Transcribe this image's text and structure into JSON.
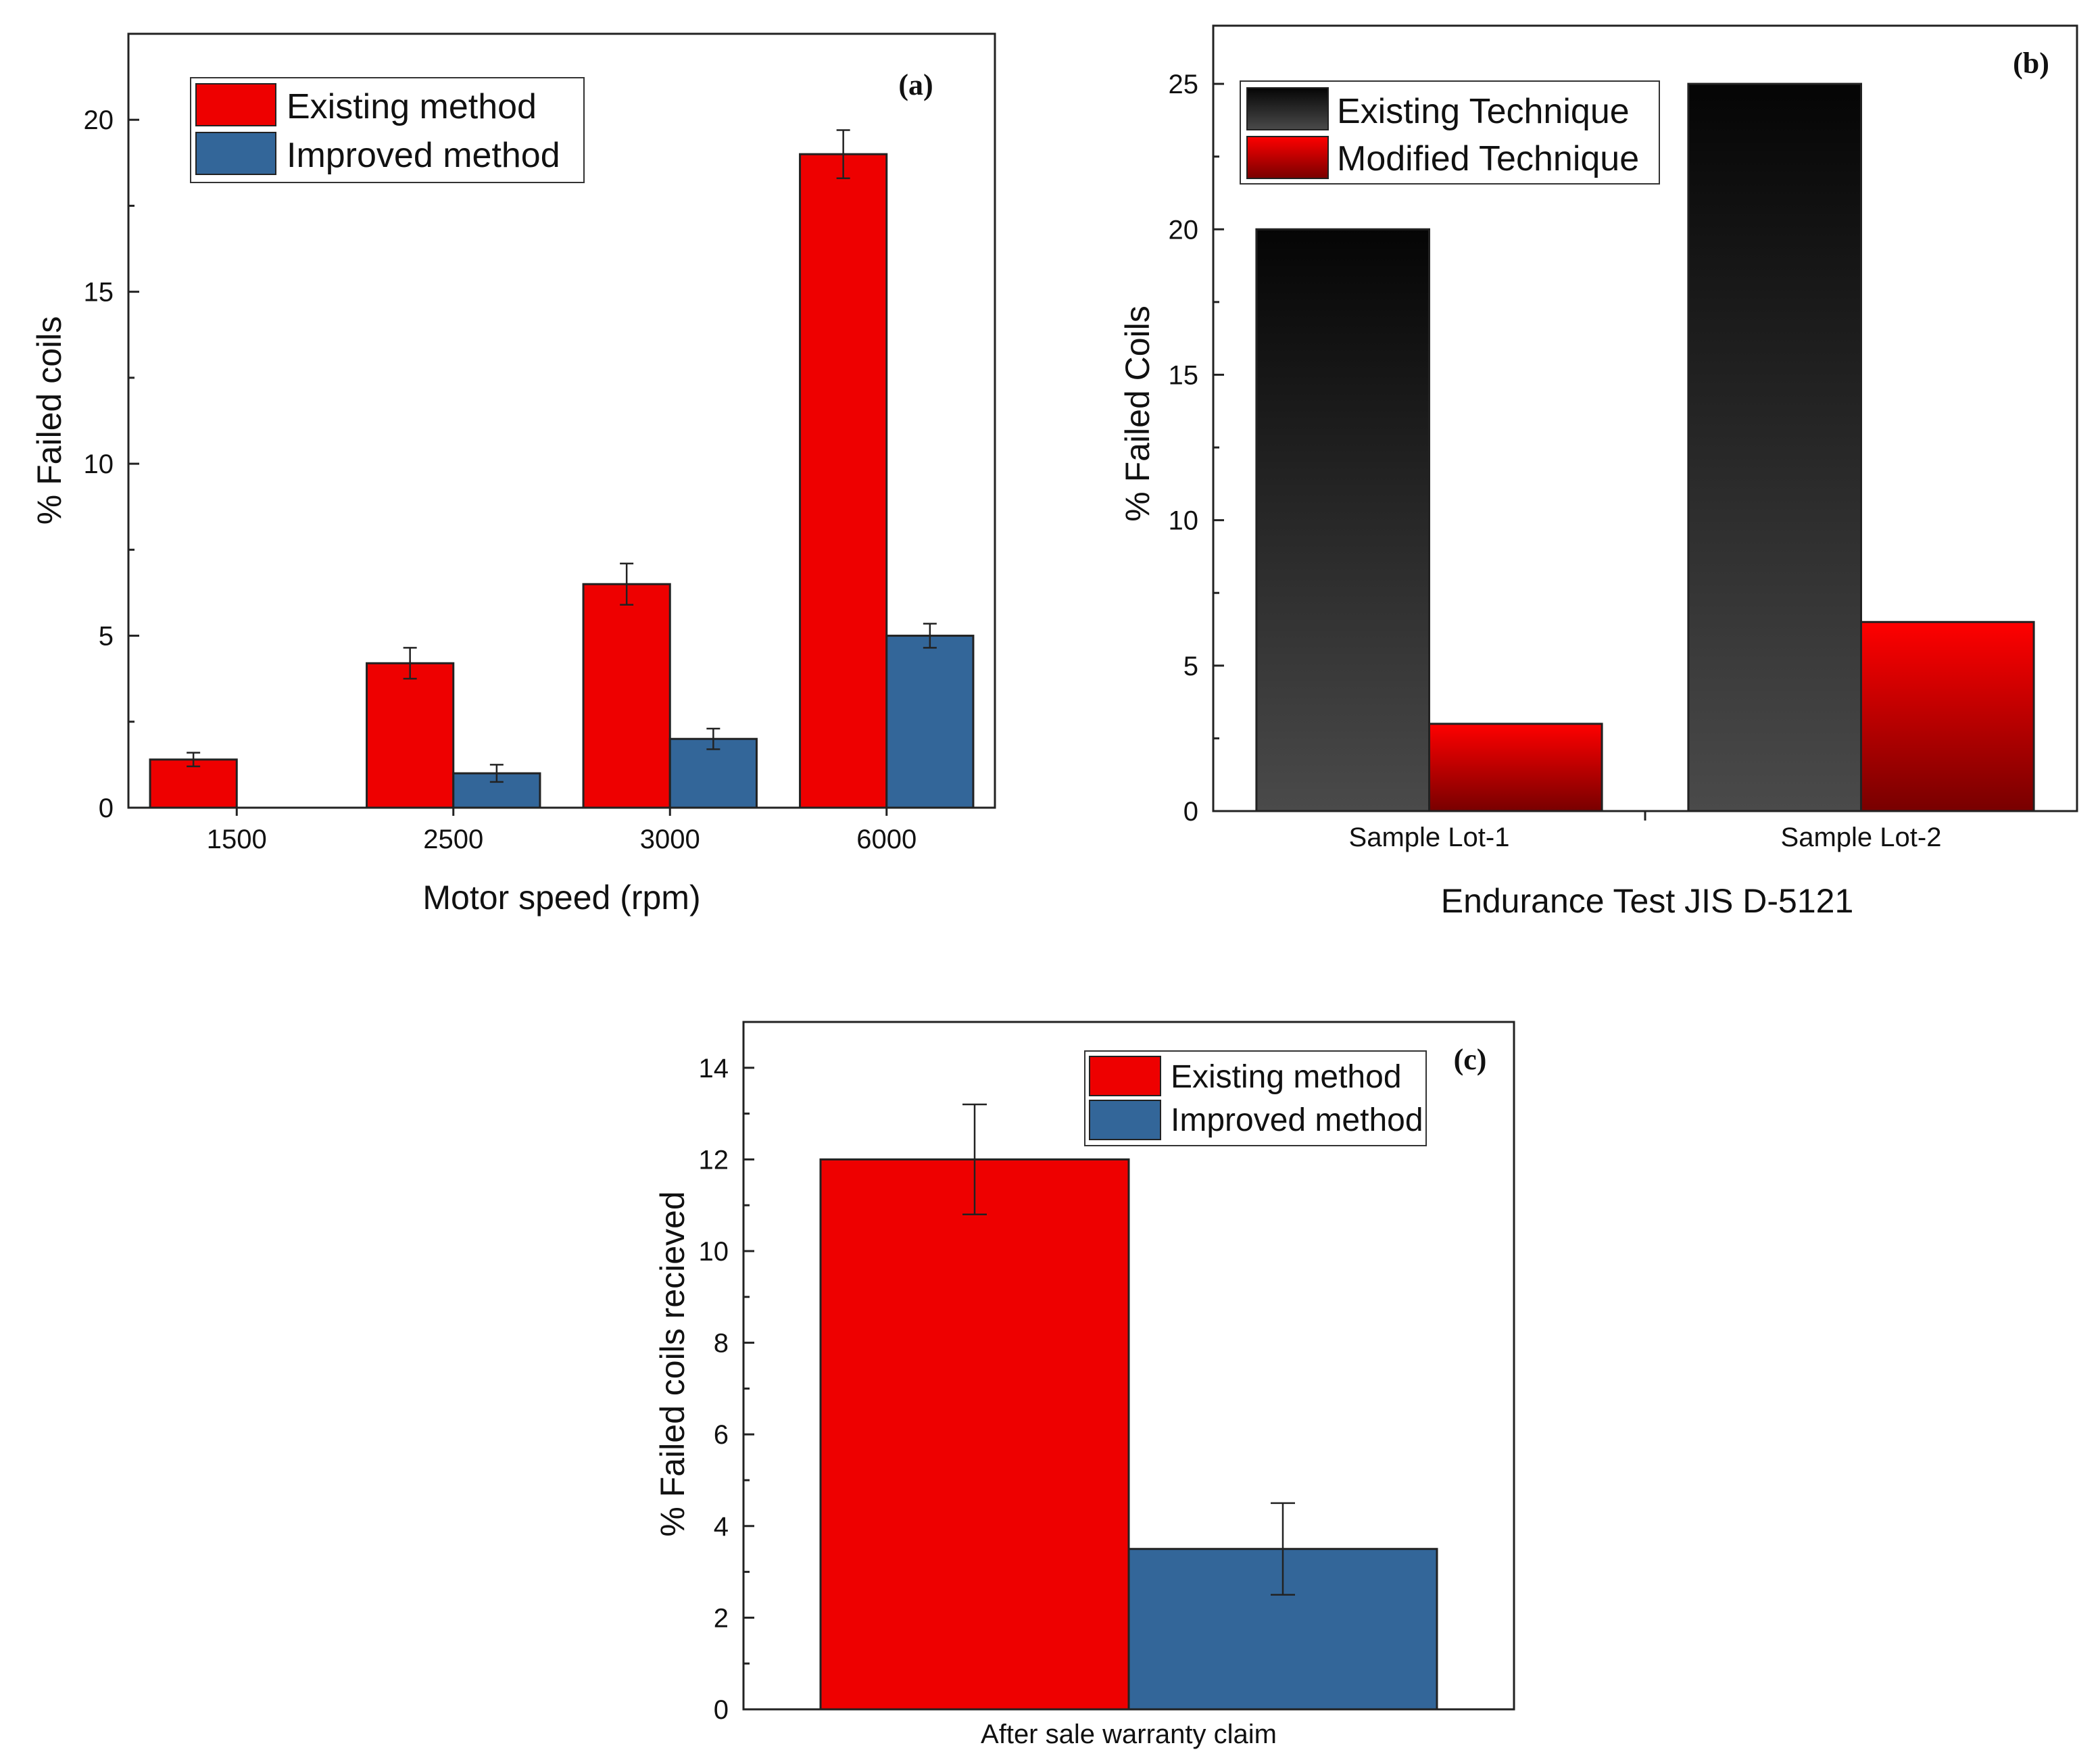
{
  "chart_data": [
    {
      "type": "bar",
      "panel_label": "(a)",
      "categories": [
        "1500",
        "2500",
        "3000",
        "6000"
      ],
      "series": [
        {
          "name": "Existing method",
          "values": [
            1.4,
            4.2,
            6.5,
            19.0
          ],
          "errors": [
            0.2,
            0.45,
            0.6,
            0.7
          ],
          "color": "#ee0000"
        },
        {
          "name": "Improved method",
          "values": [
            0,
            1.0,
            2.0,
            5.0
          ],
          "errors": [
            0,
            0.25,
            0.3,
            0.35
          ],
          "color": "#336699"
        }
      ],
      "xlabel": "Motor speed (rpm)",
      "ylabel": "% Failed coils",
      "ylim": [
        0,
        22.5
      ],
      "yticks": [
        0,
        5,
        10,
        15,
        20
      ],
      "legend": "top-left",
      "grid": false
    },
    {
      "type": "bar",
      "panel_label": "(b)",
      "categories": [
        "Sample Lot-1",
        "Sample Lot-2"
      ],
      "series": [
        {
          "name": "Existing Technique",
          "values": [
            20,
            25
          ],
          "color": "#1a1a1a"
        },
        {
          "name": "Modified Technique",
          "values": [
            3,
            6.5
          ],
          "color": "#ff0000"
        }
      ],
      "xlabel": "Endurance Test JIS D-5121",
      "ylabel": "% Failed Coils",
      "ylim": [
        0,
        27
      ],
      "yticks": [
        0,
        5,
        10,
        15,
        20,
        25
      ],
      "legend": "top-left",
      "grid": false
    },
    {
      "type": "bar",
      "panel_label": "(c)",
      "categories": [
        "After sale warranty claim"
      ],
      "series": [
        {
          "name": "Existing method",
          "values": [
            12
          ],
          "errors": [
            1.2
          ],
          "color": "#ee0000"
        },
        {
          "name": "Improved method",
          "values": [
            3.5
          ],
          "errors": [
            1.0
          ],
          "color": "#336699"
        }
      ],
      "xlabel": "",
      "ylabel": "% Failed coils recieved",
      "ylim": [
        0,
        15
      ],
      "yticks": [
        0,
        2,
        4,
        6,
        8,
        10,
        12,
        14
      ],
      "legend": "top-right",
      "grid": false
    }
  ]
}
